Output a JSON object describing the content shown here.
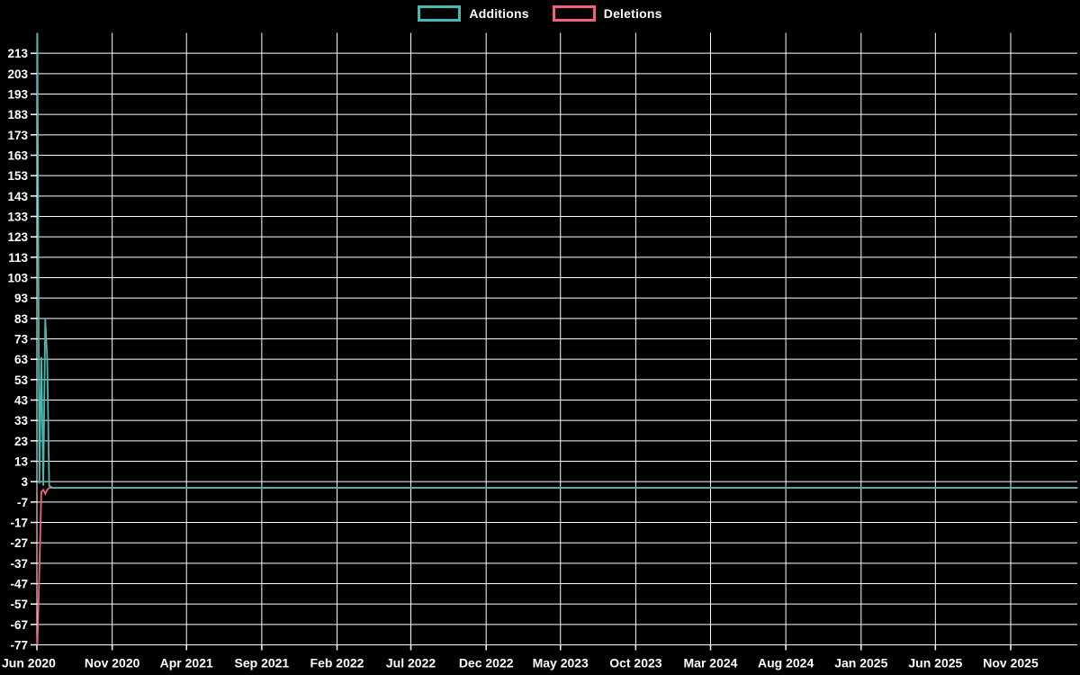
{
  "legend": {
    "items": [
      {
        "label": "Additions",
        "color": "#46b9b2",
        "swatch_icon": "additions-swatch"
      },
      {
        "label": "Deletions",
        "color": "#f4607c",
        "swatch_icon": "deletions-swatch"
      }
    ]
  },
  "chart_data": {
    "type": "line",
    "title": "",
    "xlabel": "",
    "ylabel": "",
    "background_color": "#000000",
    "grid_color": "#ffffff",
    "text_color": "#ffffff",
    "grid": true,
    "legend_position": "top-center",
    "y_axis": {
      "min": -77,
      "max": 223,
      "step": 10
    },
    "y_tick_labels": [
      213,
      203,
      193,
      183,
      173,
      163,
      153,
      143,
      133,
      123,
      113,
      103,
      93,
      83,
      73,
      63,
      53,
      43,
      33,
      23,
      13,
      3,
      -7,
      -17,
      -27,
      -37,
      -47,
      -57,
      -67,
      -77
    ],
    "x_tick_labels": [
      "Jun 2020",
      "Nov 2020",
      "Apr 2021",
      "Sep 2021",
      "Feb 2022",
      "Jul 2022",
      "Dec 2022",
      "May 2023",
      "Oct 2023",
      "Mar 2024",
      "Aug 2024",
      "Jan 2025",
      "Jun 2025",
      "Nov 2025"
    ],
    "x_tick_days": [
      0,
      153,
      304,
      457,
      610,
      760,
      913,
      1064,
      1217,
      1369,
      1522,
      1675,
      1826,
      1979
    ],
    "x_domain_days": [
      0,
      2115
    ],
    "series": [
      {
        "name": "Deletions",
        "color": "#f4607c",
        "x_days": [
          1,
          5,
          9,
          13,
          17,
          21,
          25,
          32,
          2115
        ],
        "values": [
          -77,
          -41,
          -2,
          -1,
          -3,
          -1,
          0,
          0,
          0
        ]
      },
      {
        "name": "Additions",
        "color": "#46b9b2",
        "x_days": [
          1,
          5,
          9,
          13,
          17,
          21,
          25,
          32,
          2115
        ],
        "values": [
          223,
          2,
          64,
          1,
          83,
          63,
          1,
          0,
          0
        ]
      }
    ]
  }
}
